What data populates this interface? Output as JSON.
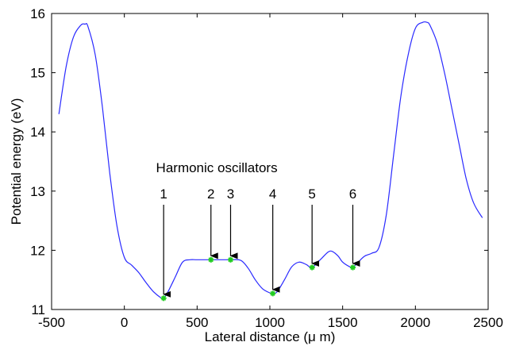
{
  "chart_data": {
    "type": "line",
    "title": "",
    "xlabel": "Lateral distance (μ m)",
    "ylabel": "Potential energy (eV)",
    "xlim": [
      -500,
      2500
    ],
    "ylim": [
      11,
      16
    ],
    "xticks": [
      -500,
      0,
      500,
      1000,
      1500,
      2000,
      2500
    ],
    "yticks": [
      11,
      12,
      13,
      14,
      15,
      16
    ],
    "grid": false,
    "line_color": "#2a2aff",
    "marker_color": "#22cc22",
    "annotation_title": "Harmonic oscillators",
    "series": [
      {
        "x": [
          -450,
          -400,
          -350,
          -300,
          -270,
          -250,
          -200,
          -150,
          -100,
          -50,
          0,
          50,
          100,
          150,
          200,
          250,
          270,
          300,
          350,
          400,
          450,
          500,
          600,
          700,
          730,
          800,
          850,
          900,
          950,
          1000,
          1020,
          1050,
          1100,
          1150,
          1200,
          1250,
          1290,
          1350,
          1400,
          1430,
          1470,
          1500,
          1550,
          1570,
          1600,
          1650,
          1700,
          1750,
          1800,
          1850,
          1900,
          1950,
          2000,
          2050,
          2080,
          2100,
          2150,
          2200,
          2250,
          2300,
          2350,
          2400,
          2460
        ],
        "y": [
          14.3,
          15.1,
          15.6,
          15.8,
          15.82,
          15.78,
          15.3,
          14.4,
          13.3,
          12.4,
          11.88,
          11.75,
          11.62,
          11.45,
          11.3,
          11.2,
          11.19,
          11.3,
          11.55,
          11.8,
          11.84,
          11.84,
          11.84,
          11.84,
          11.84,
          11.83,
          11.7,
          11.5,
          11.35,
          11.28,
          11.27,
          11.3,
          11.5,
          11.72,
          11.8,
          11.76,
          11.71,
          11.85,
          11.97,
          11.98,
          11.9,
          11.8,
          11.72,
          11.71,
          11.78,
          11.9,
          11.95,
          12.05,
          12.6,
          13.6,
          14.6,
          15.3,
          15.75,
          15.85,
          15.85,
          15.8,
          15.5,
          15.0,
          14.4,
          13.8,
          13.2,
          12.8,
          12.55
        ]
      }
    ],
    "markers": [
      {
        "label": "1",
        "x": 270,
        "y": 11.19
      },
      {
        "label": "2",
        "x": 595,
        "y": 11.84
      },
      {
        "label": "3",
        "x": 730,
        "y": 11.84
      },
      {
        "label": "4",
        "x": 1020,
        "y": 11.27
      },
      {
        "label": "5",
        "x": 1290,
        "y": 11.71
      },
      {
        "label": "6",
        "x": 1570,
        "y": 11.71
      }
    ]
  }
}
